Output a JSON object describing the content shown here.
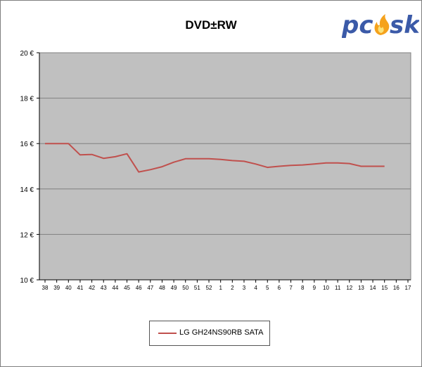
{
  "chart_data": {
    "type": "line",
    "title": "DVD±RW",
    "xlabel": "",
    "ylabel": "",
    "categories": [
      "38",
      "39",
      "40",
      "41",
      "42",
      "43",
      "44",
      "45",
      "46",
      "47",
      "48",
      "49",
      "50",
      "51",
      "52",
      "1",
      "2",
      "3",
      "4",
      "5",
      "6",
      "7",
      "8",
      "9",
      "10",
      "11",
      "12",
      "13",
      "14",
      "15",
      "16",
      "17"
    ],
    "ylim": [
      10,
      20
    ],
    "yticks": [
      "10 €",
      "12 €",
      "14 €",
      "16 €",
      "18 €",
      "20 €"
    ],
    "ytick_values": [
      10,
      12,
      14,
      16,
      18,
      20
    ],
    "grid": true,
    "legend_position": "bottom-center",
    "series": [
      {
        "name": "LG GH24NS90RB SATA",
        "color": "#c0504d",
        "values": [
          16.0,
          16.0,
          16.0,
          15.5,
          15.52,
          15.35,
          15.42,
          15.55,
          14.75,
          14.85,
          14.98,
          15.18,
          15.33,
          15.33,
          15.33,
          15.3,
          15.25,
          15.22,
          15.1,
          14.95,
          15.0,
          15.04,
          15.06,
          15.1,
          15.15,
          15.15,
          15.12,
          15.0,
          15.0,
          15.0,
          null,
          null
        ]
      }
    ]
  },
  "logo": {
    "text": "pcsk"
  },
  "colors": {
    "plot_bg": "#c0c0c0",
    "grid": "#808080",
    "line": "#c0504d",
    "logo_blue": "#3b5aa8",
    "logo_flame": "#f5a21c"
  }
}
